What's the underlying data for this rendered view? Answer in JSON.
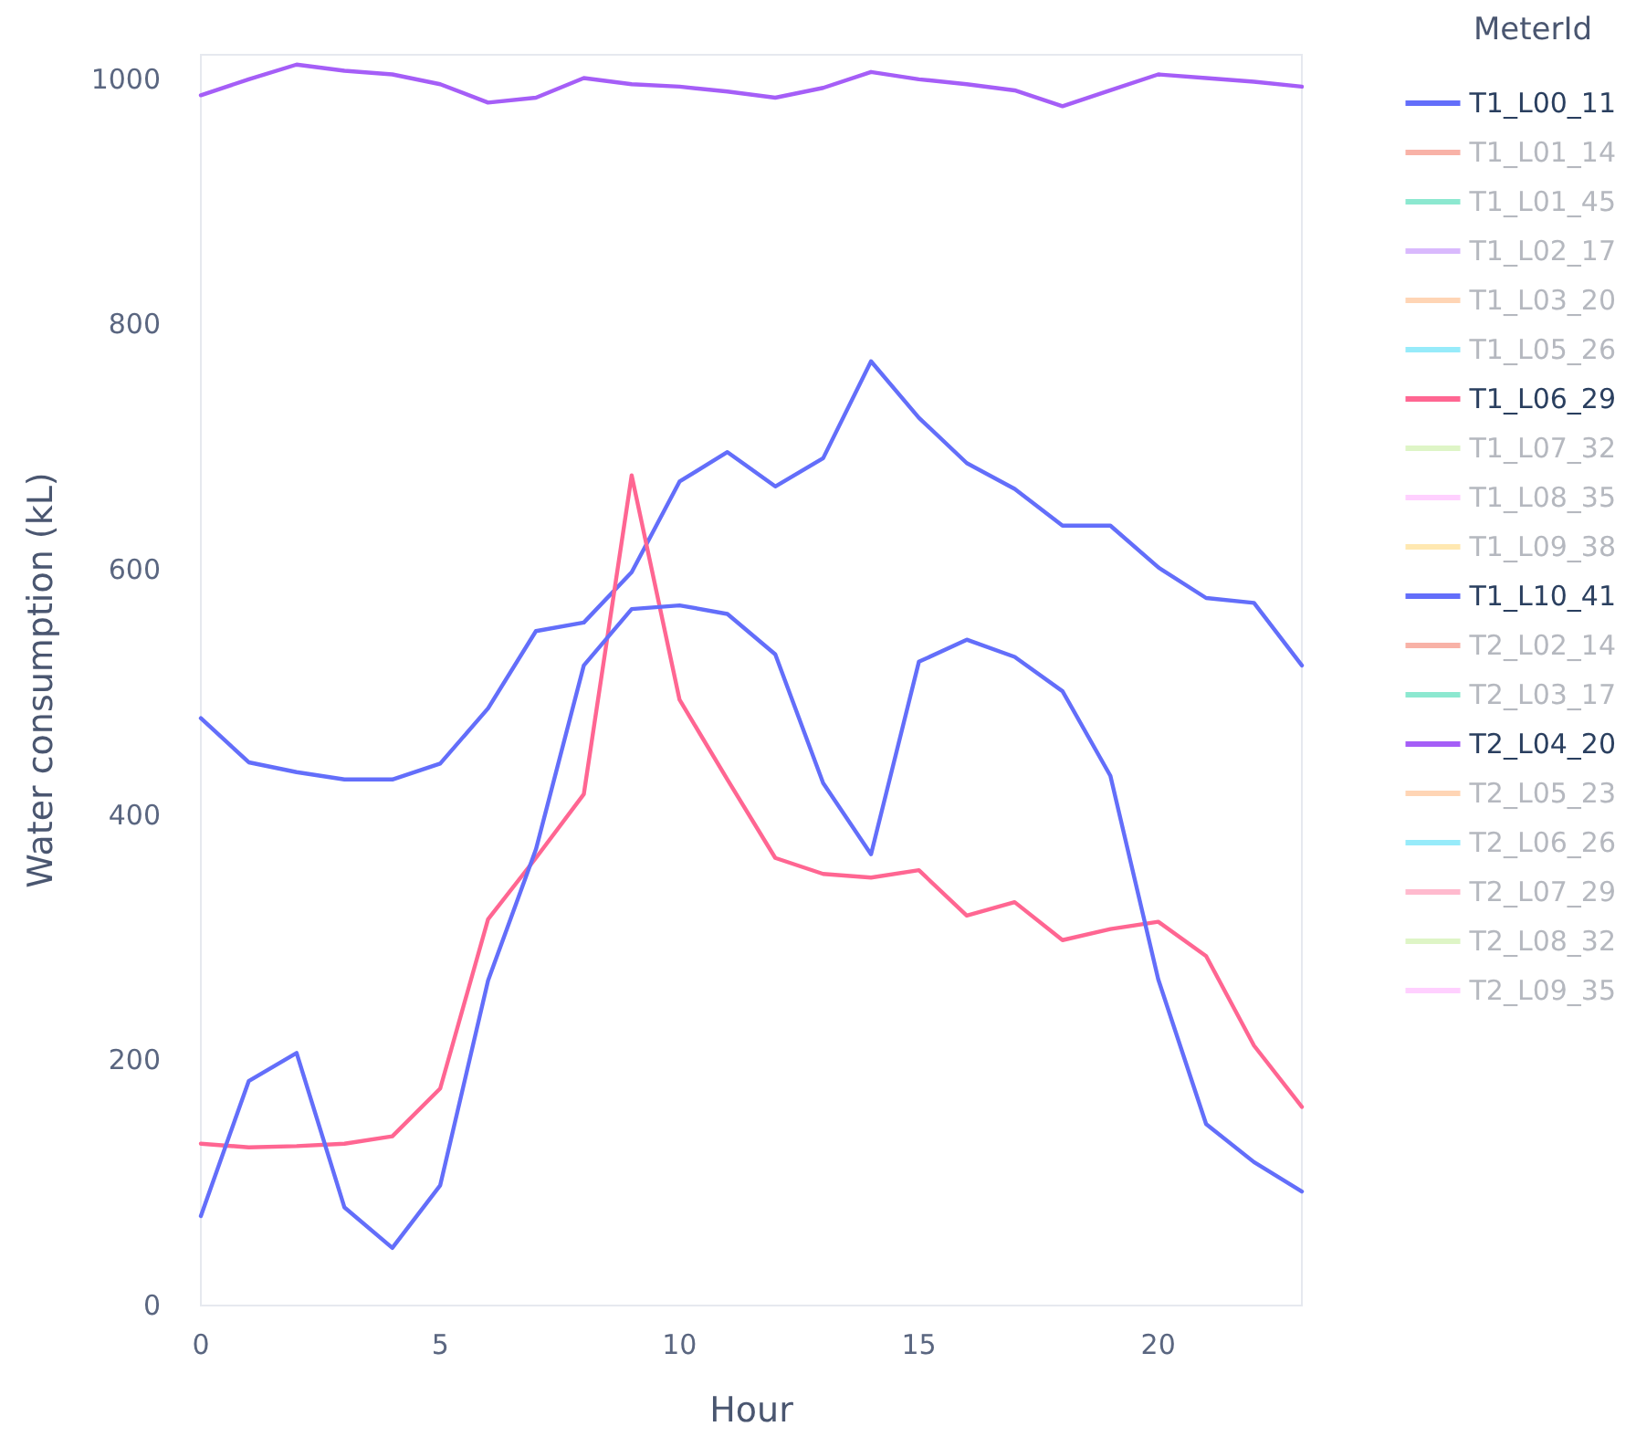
{
  "chart_data": {
    "type": "line",
    "xlabel": "Hour",
    "ylabel": "Water consumption (kL)",
    "legend_title": "MeterId",
    "legend": "right",
    "grid": false,
    "x": [
      0,
      1,
      2,
      3,
      4,
      5,
      6,
      7,
      8,
      9,
      10,
      11,
      12,
      13,
      14,
      15,
      16,
      17,
      18,
      19,
      20,
      21,
      22,
      23
    ],
    "xlim": [
      0,
      23
    ],
    "xticks": [
      0,
      5,
      10,
      15,
      20
    ],
    "ylim": [
      0,
      1020
    ],
    "yticks": [
      0,
      200,
      400,
      600,
      800,
      1000
    ],
    "series": [
      {
        "name": "T1_L00_11",
        "color": "#636efa",
        "values": [
          479,
          443,
          435,
          429,
          429,
          442,
          487,
          550,
          557,
          598,
          672,
          696,
          668,
          691,
          770,
          724,
          687,
          666,
          636,
          636,
          602,
          577,
          573,
          522
        ]
      },
      {
        "name": "T1_L01_14",
        "color": "#ef553b",
        "values": [
          null,
          null,
          null,
          null,
          null,
          null,
          null,
          null,
          null,
          null,
          null,
          null,
          null,
          null,
          null,
          null,
          null,
          null,
          null,
          null,
          null,
          null,
          null,
          null
        ]
      },
      {
        "name": "T1_L01_45",
        "color": "#00cc96",
        "values": [
          null,
          null,
          null,
          null,
          null,
          null,
          null,
          null,
          null,
          null,
          null,
          null,
          null,
          null,
          null,
          null,
          null,
          null,
          null,
          null,
          null,
          null,
          null,
          null
        ]
      },
      {
        "name": "T1_L02_17",
        "color": "#ab63fa",
        "values": [
          null,
          null,
          null,
          null,
          null,
          null,
          null,
          null,
          null,
          null,
          null,
          null,
          null,
          null,
          null,
          null,
          null,
          null,
          null,
          null,
          null,
          null,
          null,
          null
        ]
      },
      {
        "name": "T1_L03_20",
        "color": "#ffa15a",
        "values": [
          null,
          null,
          null,
          null,
          null,
          null,
          null,
          null,
          null,
          null,
          null,
          null,
          null,
          null,
          null,
          null,
          null,
          null,
          null,
          null,
          null,
          null,
          null,
          null
        ]
      },
      {
        "name": "T1_L05_26",
        "color": "#19d3f3",
        "values": [
          null,
          null,
          null,
          null,
          null,
          null,
          null,
          null,
          null,
          null,
          null,
          null,
          null,
          null,
          null,
          null,
          null,
          null,
          null,
          null,
          null,
          null,
          null,
          null
        ]
      },
      {
        "name": "T1_L06_29",
        "color": "#ff6692",
        "values": [
          132,
          129,
          130,
          132,
          138,
          177,
          315,
          365,
          417,
          677,
          494,
          429,
          365,
          352,
          349,
          355,
          318,
          329,
          298,
          307,
          313,
          285,
          212,
          162
        ]
      },
      {
        "name": "T1_L07_32",
        "color": "#b6e880",
        "values": [
          null,
          null,
          null,
          null,
          null,
          null,
          null,
          null,
          null,
          null,
          null,
          null,
          null,
          null,
          null,
          null,
          null,
          null,
          null,
          null,
          null,
          null,
          null,
          null
        ]
      },
      {
        "name": "T1_L08_35",
        "color": "#ff97ff",
        "values": [
          null,
          null,
          null,
          null,
          null,
          null,
          null,
          null,
          null,
          null,
          null,
          null,
          null,
          null,
          null,
          null,
          null,
          null,
          null,
          null,
          null,
          null,
          null,
          null
        ]
      },
      {
        "name": "T1_L09_38",
        "color": "#fecb52",
        "values": [
          null,
          null,
          null,
          null,
          null,
          null,
          null,
          null,
          null,
          null,
          null,
          null,
          null,
          null,
          null,
          null,
          null,
          null,
          null,
          null,
          null,
          null,
          null,
          null
        ]
      },
      {
        "name": "T1_L10_41",
        "color": "#636efa",
        "values": [
          73,
          183,
          206,
          80,
          47,
          98,
          265,
          372,
          522,
          568,
          571,
          564,
          531,
          426,
          368,
          525,
          543,
          529,
          501,
          432,
          266,
          148,
          117,
          93
        ]
      },
      {
        "name": "T2_L02_14",
        "color": "#ef553b",
        "values": [
          null,
          null,
          null,
          null,
          null,
          null,
          null,
          null,
          null,
          null,
          null,
          null,
          null,
          null,
          null,
          null,
          null,
          null,
          null,
          null,
          null,
          null,
          null,
          null
        ]
      },
      {
        "name": "T2_L03_17",
        "color": "#00cc96",
        "values": [
          null,
          null,
          null,
          null,
          null,
          null,
          null,
          null,
          null,
          null,
          null,
          null,
          null,
          null,
          null,
          null,
          null,
          null,
          null,
          null,
          null,
          null,
          null,
          null
        ]
      },
      {
        "name": "T2_L04_20",
        "color": "#a55ef7",
        "values": [
          987,
          1000,
          1012,
          1007,
          1004,
          996,
          981,
          985,
          1001,
          996,
          994,
          990,
          985,
          993,
          1006,
          1000,
          996,
          991,
          978,
          991,
          1004,
          1001,
          998,
          994
        ]
      },
      {
        "name": "T2_L05_23",
        "color": "#ffa15a",
        "values": [
          null,
          null,
          null,
          null,
          null,
          null,
          null,
          null,
          null,
          null,
          null,
          null,
          null,
          null,
          null,
          null,
          null,
          null,
          null,
          null,
          null,
          null,
          null,
          null
        ]
      },
      {
        "name": "T2_L06_26",
        "color": "#19d3f3",
        "values": [
          null,
          null,
          null,
          null,
          null,
          null,
          null,
          null,
          null,
          null,
          null,
          null,
          null,
          null,
          null,
          null,
          null,
          null,
          null,
          null,
          null,
          null,
          null,
          null
        ]
      },
      {
        "name": "T2_L07_29",
        "color": "#ff6692",
        "values": [
          null,
          null,
          null,
          null,
          null,
          null,
          null,
          null,
          null,
          null,
          null,
          null,
          null,
          null,
          null,
          null,
          null,
          null,
          null,
          null,
          null,
          null,
          null,
          null
        ]
      },
      {
        "name": "T2_L08_32",
        "color": "#b6e880",
        "values": [
          null,
          null,
          null,
          null,
          null,
          null,
          null,
          null,
          null,
          null,
          null,
          null,
          null,
          null,
          null,
          null,
          null,
          null,
          null,
          null,
          null,
          null,
          null,
          null
        ]
      },
      {
        "name": "T2_L09_35",
        "color": "#ff97ff",
        "values": [
          null,
          null,
          null,
          null,
          null,
          null,
          null,
          null,
          null,
          null,
          null,
          null,
          null,
          null,
          null,
          null,
          null,
          null,
          null,
          null,
          null,
          null,
          null,
          null
        ]
      }
    ]
  }
}
